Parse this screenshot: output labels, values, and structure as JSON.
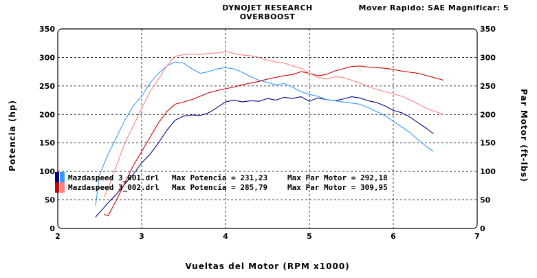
{
  "header": {
    "title_line1": "DYNOJET RESEARCH",
    "title_line2": "OVERBOOST",
    "settings": "Mover Rapido: SAE  Magnificar: 5"
  },
  "chart_data": {
    "type": "line",
    "xlabel": "Vueltas del Motor (RPM x1000)",
    "ylabel_left": "Potencia (hp)",
    "ylabel_right": "Par Motor (ft-lbs)",
    "xlim": [
      2,
      7
    ],
    "ylim": [
      0,
      350
    ],
    "xticks": [
      2,
      3,
      4,
      5,
      6,
      7
    ],
    "yticks": [
      0,
      50,
      100,
      150,
      200,
      250,
      300,
      350
    ],
    "grid": true,
    "legend_position": "middle-left",
    "legend": [
      {
        "file": "Mazdaspeed 3_001.drl",
        "power_label": "Max Potencia = 231,23",
        "torque_label": "Max Par Motor = 292,18",
        "color_power": "#000080",
        "color_torque": "#3399ff"
      },
      {
        "file": "Mazdaspeed 3_002.drl",
        "power_label": "Max Potencia = 285,79",
        "torque_label": "Max Par Motor = 309,95",
        "color_power": "#cc0000",
        "color_torque": "#ff8080"
      }
    ],
    "series": [
      {
        "id": "run1-power",
        "color": "#000080",
        "x": [
          2.45,
          2.5,
          2.6,
          2.7,
          2.8,
          2.9,
          3.0,
          3.1,
          3.2,
          3.3,
          3.4,
          3.5,
          3.6,
          3.7,
          3.8,
          3.9,
          4.0,
          4.1,
          4.2,
          4.3,
          4.4,
          4.5,
          4.6,
          4.7,
          4.8,
          4.9,
          5.0,
          5.1,
          5.2,
          5.3,
          5.4,
          5.5,
          5.6,
          5.7,
          5.8,
          5.9,
          6.0,
          6.1,
          6.2,
          6.3,
          6.4,
          6.48
        ],
        "y": [
          20,
          28,
          45,
          60,
          78,
          95,
          115,
          130,
          150,
          172,
          190,
          197,
          199,
          198,
          203,
          212,
          222,
          225,
          222,
          224,
          223,
          228,
          225,
          230,
          228,
          231,
          223,
          229,
          226,
          224,
          227,
          231,
          229,
          224,
          221,
          215,
          207,
          203,
          195,
          185,
          175,
          166
        ]
      },
      {
        "id": "run1-torque",
        "color": "#3399ff",
        "x": [
          2.45,
          2.5,
          2.6,
          2.7,
          2.8,
          2.9,
          3.0,
          3.1,
          3.2,
          3.3,
          3.4,
          3.5,
          3.6,
          3.7,
          3.8,
          3.9,
          4.0,
          4.1,
          4.2,
          4.3,
          4.4,
          4.5,
          4.6,
          4.7,
          4.8,
          4.9,
          5.0,
          5.1,
          5.2,
          5.3,
          5.4,
          5.5,
          5.6,
          5.7,
          5.8,
          5.9,
          6.0,
          6.1,
          6.2,
          6.3,
          6.4,
          6.48
        ],
        "y": [
          40,
          95,
          130,
          160,
          190,
          215,
          232,
          255,
          272,
          285,
          292,
          290,
          280,
          272,
          275,
          280,
          282,
          280,
          274,
          266,
          260,
          256,
          252,
          254,
          248,
          240,
          235,
          232,
          226,
          224,
          222,
          220,
          218,
          212,
          205,
          198,
          188,
          178,
          168,
          155,
          143,
          135
        ]
      },
      {
        "id": "run2-power",
        "color": "#cc0000",
        "x": [
          2.55,
          2.6,
          2.7,
          2.8,
          2.9,
          3.0,
          3.1,
          3.2,
          3.3,
          3.4,
          3.5,
          3.6,
          3.7,
          3.8,
          3.9,
          4.0,
          4.1,
          4.2,
          4.3,
          4.4,
          4.5,
          4.6,
          4.7,
          4.8,
          4.9,
          5.0,
          5.1,
          5.2,
          5.3,
          5.4,
          5.5,
          5.6,
          5.7,
          5.8,
          5.9,
          6.0,
          6.1,
          6.2,
          6.3,
          6.4,
          6.5,
          6.6
        ],
        "y": [
          25,
          22,
          50,
          80,
          110,
          135,
          160,
          185,
          205,
          218,
          222,
          226,
          232,
          238,
          242,
          245,
          248,
          252,
          255,
          258,
          262,
          265,
          268,
          270,
          275,
          272,
          268,
          270,
          276,
          280,
          284,
          285,
          283,
          282,
          281,
          279,
          276,
          274,
          272,
          268,
          264,
          260
        ]
      },
      {
        "id": "run2-torque",
        "color": "#ff8080",
        "x": [
          2.55,
          2.6,
          2.7,
          2.8,
          2.9,
          3.0,
          3.1,
          3.2,
          3.3,
          3.4,
          3.5,
          3.6,
          3.7,
          3.8,
          3.9,
          4.0,
          4.1,
          4.2,
          4.3,
          4.4,
          4.5,
          4.6,
          4.7,
          4.8,
          4.9,
          5.0,
          5.1,
          5.2,
          5.3,
          5.4,
          5.5,
          5.6,
          5.7,
          5.8,
          5.9,
          6.0,
          6.1,
          6.2,
          6.3,
          6.4,
          6.5,
          6.6
        ],
        "y": [
          55,
          70,
          110,
          150,
          180,
          210,
          240,
          262,
          285,
          302,
          305,
          306,
          305,
          307,
          308,
          310,
          307,
          304,
          303,
          300,
          295,
          292,
          290,
          285,
          281,
          272,
          265,
          262,
          266,
          265,
          260,
          255,
          249,
          244,
          240,
          236,
          232,
          225,
          218,
          210,
          205,
          200
        ]
      }
    ]
  }
}
